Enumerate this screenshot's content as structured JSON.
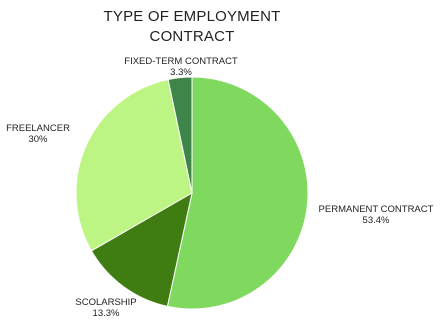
{
  "chart_data": {
    "type": "pie",
    "title_lines": [
      "TYPE OF EMPLOYMENT",
      "CONTRACT"
    ],
    "start_angle_deg": 0,
    "direction": "clockwise",
    "slices": [
      {
        "label": "PERMANENT CONTRACT",
        "value": 53.4,
        "display": "53.4%",
        "color": "#7fd95e"
      },
      {
        "label": "SCOLARSHIP",
        "value": 13.3,
        "display": "13.3%",
        "color": "#3f7d12"
      },
      {
        "label": "FREELANCER",
        "value": 30,
        "display": "30%",
        "color": "#bdf584"
      },
      {
        "label": "FIXED-TERM CONTRACT",
        "value": 3.3,
        "display": "3.3%",
        "color": "#3f8549"
      }
    ]
  }
}
